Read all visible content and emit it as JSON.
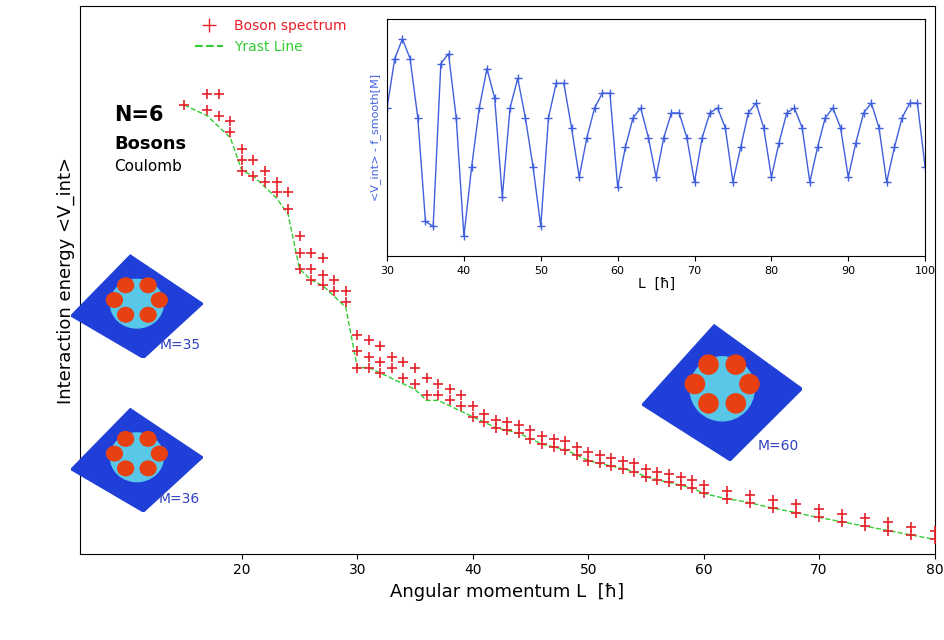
{
  "chart_data": [
    {
      "type": "scatter",
      "xlabel": "Angular momentum L  [ħ]",
      "ylabel": "Interaction energy <V_int>",
      "annotations": [
        "N=6",
        "Bosons",
        "Coulomb",
        "M=35",
        "M=36",
        "M=60"
      ],
      "xlim": [
        6,
        80
      ],
      "xticks": [
        20,
        30,
        40,
        50,
        60,
        70,
        80
      ],
      "ylim": [
        0,
        1
      ],
      "yticks": [],
      "tick_labels": "x",
      "legend": "upper left",
      "series": [
        {
          "name": "Boson spectrum",
          "type": "scatter",
          "color": "#e8202a",
          "marker": "+",
          "x": [
            15,
            17,
            17,
            18,
            18,
            19,
            19,
            20,
            20,
            20,
            21,
            21,
            22,
            22,
            23,
            23,
            24,
            24,
            25,
            25,
            25,
            26,
            26,
            26,
            27,
            27,
            27,
            28,
            28,
            29,
            29,
            30,
            30,
            30,
            31,
            31,
            31,
            32,
            32,
            32,
            33,
            33,
            34,
            34,
            35,
            35,
            36,
            36,
            37,
            37,
            38,
            38,
            39,
            39,
            40,
            40,
            41,
            41,
            42,
            42,
            43,
            43,
            44,
            44,
            45,
            45,
            46,
            46,
            47,
            47,
            48,
            48,
            49,
            49,
            50,
            50,
            51,
            51,
            52,
            52,
            53,
            53,
            54,
            54,
            55,
            55,
            56,
            56,
            57,
            57,
            58,
            58,
            59,
            59,
            60,
            60,
            62,
            62,
            64,
            64,
            66,
            66,
            68,
            68,
            70,
            70,
            72,
            72,
            74,
            74,
            76,
            76,
            78,
            78,
            80,
            80
          ],
          "values": [
            0.82,
            0.84,
            0.81,
            0.84,
            0.8,
            0.79,
            0.77,
            0.74,
            0.72,
            0.7,
            0.72,
            0.69,
            0.7,
            0.68,
            0.68,
            0.66,
            0.66,
            0.63,
            0.58,
            0.55,
            0.52,
            0.55,
            0.52,
            0.5,
            0.54,
            0.51,
            0.49,
            0.5,
            0.48,
            0.48,
            0.46,
            0.4,
            0.37,
            0.34,
            0.39,
            0.36,
            0.34,
            0.38,
            0.35,
            0.33,
            0.36,
            0.34,
            0.35,
            0.32,
            0.34,
            0.31,
            0.32,
            0.29,
            0.31,
            0.29,
            0.3,
            0.28,
            0.29,
            0.27,
            0.27,
            0.25,
            0.255,
            0.24,
            0.245,
            0.23,
            0.24,
            0.225,
            0.235,
            0.22,
            0.225,
            0.21,
            0.215,
            0.2,
            0.21,
            0.195,
            0.205,
            0.19,
            0.195,
            0.18,
            0.185,
            0.17,
            0.18,
            0.165,
            0.175,
            0.16,
            0.17,
            0.155,
            0.165,
            0.15,
            0.155,
            0.14,
            0.15,
            0.135,
            0.145,
            0.13,
            0.14,
            0.125,
            0.135,
            0.12,
            0.125,
            0.11,
            0.115,
            0.1,
            0.108,
            0.093,
            0.098,
            0.083,
            0.09,
            0.075,
            0.081,
            0.066,
            0.073,
            0.058,
            0.065,
            0.05,
            0.057,
            0.042,
            0.049,
            0.034,
            0.041,
            0.026
          ]
        },
        {
          "name": "Yrast Line",
          "type": "line",
          "color": "#33cc33",
          "line_style": "dashed",
          "x": [
            15,
            16,
            17,
            18,
            19,
            20,
            21,
            22,
            23,
            24,
            25,
            26,
            27,
            28,
            29,
            30,
            31,
            32,
            33,
            34,
            35,
            36,
            37,
            38,
            39,
            40,
            41,
            42,
            43,
            44,
            45,
            46,
            47,
            48,
            49,
            50,
            51,
            52,
            53,
            54,
            55,
            56,
            57,
            58,
            59,
            60,
            61,
            62,
            63,
            64,
            65,
            66,
            67,
            68,
            69,
            70,
            71,
            72,
            73,
            74,
            75,
            76,
            77,
            78,
            79,
            80
          ],
          "values": [
            0.82,
            0.81,
            0.8,
            0.78,
            0.76,
            0.7,
            0.69,
            0.67,
            0.65,
            0.62,
            0.52,
            0.5,
            0.49,
            0.47,
            0.45,
            0.34,
            0.34,
            0.33,
            0.32,
            0.31,
            0.3,
            0.28,
            0.28,
            0.27,
            0.26,
            0.25,
            0.24,
            0.23,
            0.225,
            0.22,
            0.21,
            0.2,
            0.195,
            0.19,
            0.18,
            0.17,
            0.165,
            0.16,
            0.155,
            0.15,
            0.14,
            0.135,
            0.13,
            0.125,
            0.12,
            0.11,
            0.105,
            0.1,
            0.097,
            0.093,
            0.088,
            0.083,
            0.079,
            0.075,
            0.07,
            0.066,
            0.062,
            0.058,
            0.054,
            0.05,
            0.046,
            0.042,
            0.038,
            0.034,
            0.03,
            0.026
          ]
        }
      ]
    },
    {
      "type": "line",
      "xlabel": "L  [ħ]",
      "ylabel": "<V_int> - f_smooth[M]",
      "xlim": [
        30,
        100
      ],
      "xticks": [
        30,
        40,
        50,
        60,
        70,
        80,
        90,
        100
      ],
      "ylim": [
        -1.2,
        1.2
      ],
      "yticks": [],
      "tick_labels": "x",
      "color": "#3f5fdc",
      "marker": "+",
      "x": [
        30,
        31,
        32,
        33,
        34,
        35,
        36,
        37,
        38,
        39,
        40,
        41,
        42,
        43,
        44,
        45,
        46,
        47,
        48,
        49,
        50,
        51,
        52,
        53,
        54,
        55,
        56,
        57,
        58,
        59,
        60,
        61,
        62,
        63,
        64,
        65,
        66,
        67,
        68,
        69,
        70,
        71,
        72,
        73,
        74,
        75,
        76,
        77,
        78,
        79,
        80,
        81,
        82,
        83,
        84,
        85,
        86,
        87,
        88,
        89,
        90,
        91,
        92,
        93,
        94,
        95,
        96,
        97,
        98,
        99,
        100
      ],
      "values": [
        0.3,
        0.8,
        1.0,
        0.8,
        0.2,
        -0.85,
        -0.9,
        0.75,
        0.85,
        0.2,
        -1.0,
        -0.3,
        0.3,
        0.7,
        0.4,
        -0.6,
        0.3,
        0.6,
        0.2,
        -0.3,
        -0.9,
        0.2,
        0.55,
        0.55,
        0.1,
        -0.4,
        0.0,
        0.3,
        0.45,
        0.45,
        -0.5,
        -0.1,
        0.2,
        0.3,
        0.0,
        -0.4,
        0.0,
        0.25,
        0.25,
        0.0,
        -0.45,
        0.0,
        0.25,
        0.3,
        0.1,
        -0.45,
        -0.1,
        0.25,
        0.35,
        0.1,
        -0.4,
        -0.05,
        0.25,
        0.3,
        0.1,
        -0.45,
        -0.1,
        0.2,
        0.3,
        0.1,
        -0.4,
        -0.05,
        0.25,
        0.35,
        0.1,
        -0.45,
        -0.1,
        0.2,
        0.35,
        0.35,
        -0.3
      ]
    }
  ]
}
